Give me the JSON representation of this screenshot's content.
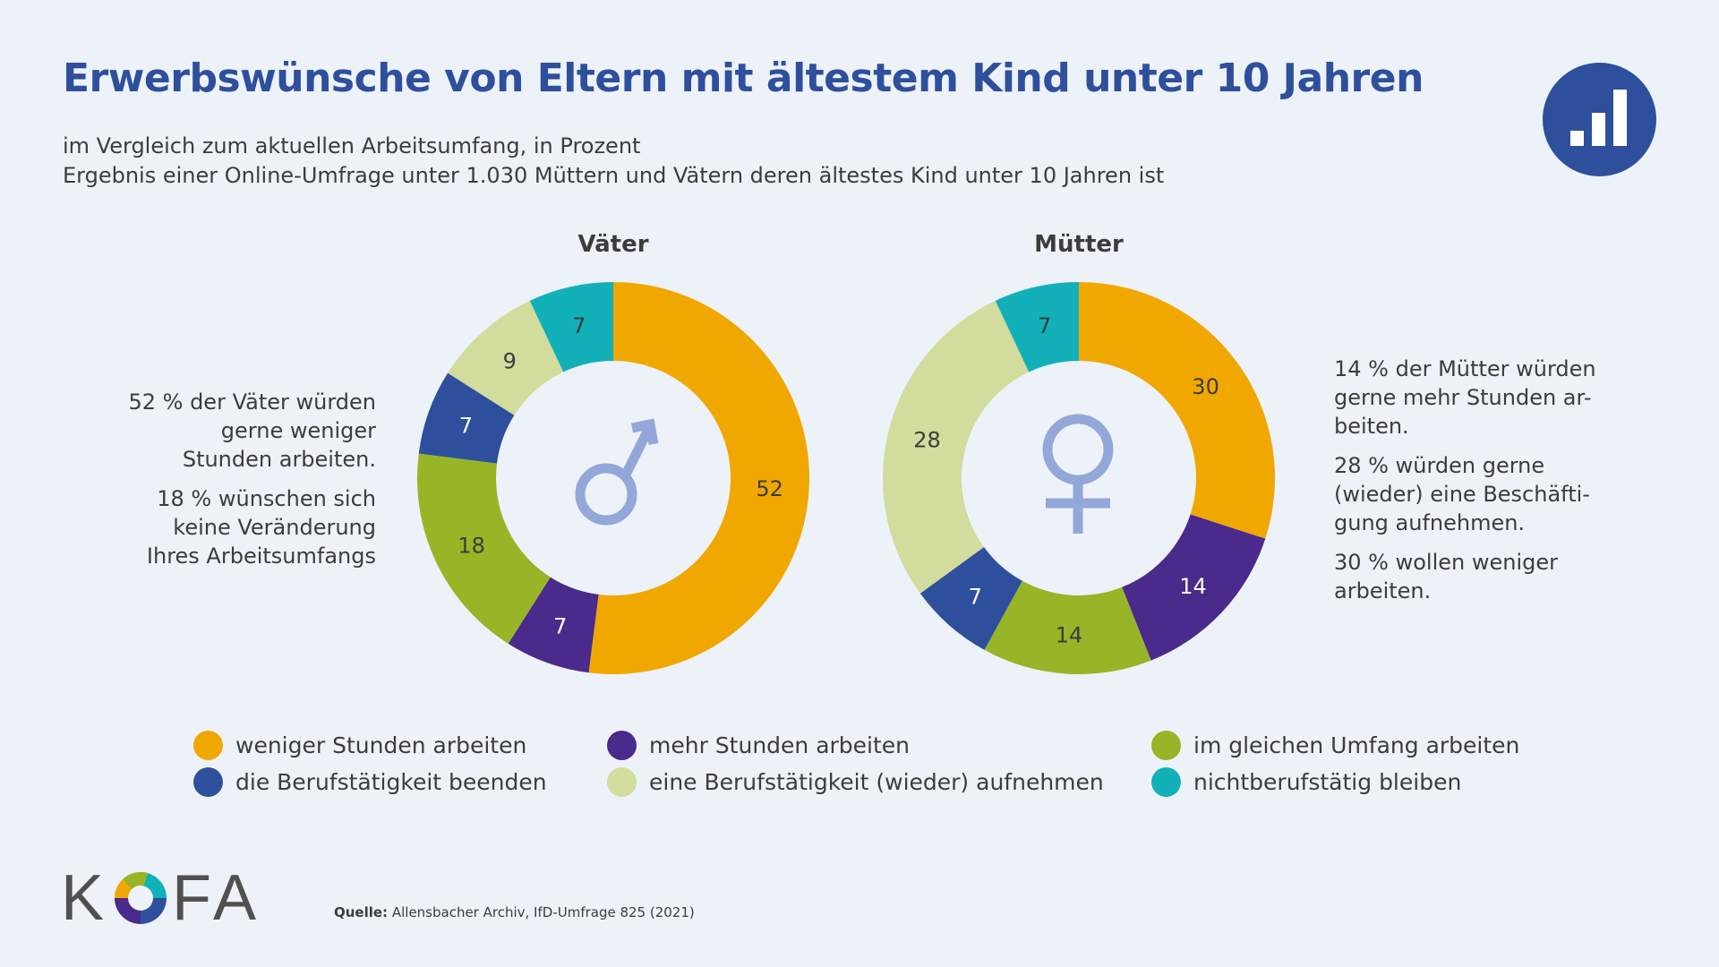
{
  "title": "Erwerbswünsche von Eltern mit ältestem Kind unter 10 Jahren",
  "subtitle": {
    "line1": "im Vergleich zum aktuellen Arbeitsumfang, in Prozent",
    "line2": "Ergebnis einer Online-Umfrage unter 1.030 Müttern und Vätern deren ältestes Kind unter 10 Jahren ist"
  },
  "icons": {
    "corner": "bar-chart-icon",
    "fathers_center": "male-symbol-icon",
    "mothers_center": "female-symbol-icon",
    "logo_mark": "kofa-swirl-icon"
  },
  "colors": {
    "title": "#2e4f9c",
    "orange": "#f0a800",
    "purple": "#4a2a8a",
    "green": "#97b527",
    "blue": "#2e4f9c",
    "lightgreen": "#d2dc9c",
    "teal": "#12b0b8",
    "symbol": "#93a7d8"
  },
  "chart_data": [
    {
      "type": "pie",
      "title": "Väter",
      "categories": [
        "weniger Stunden arbeiten",
        "mehr Stunden arbeiten",
        "im gleichen Umfang arbeiten",
        "die Berufstätigkeit beenden",
        "eine Berufstätigkeit (wieder) aufnehmen",
        "nichtberufstätig bleiben"
      ],
      "values": [
        52,
        7,
        18,
        7,
        9,
        7
      ],
      "colors": [
        "#f0a800",
        "#4a2a8a",
        "#97b527",
        "#2e4f9c",
        "#d2dc9c",
        "#12b0b8"
      ]
    },
    {
      "type": "pie",
      "title": "Mütter",
      "categories": [
        "weniger Stunden arbeiten",
        "mehr Stunden arbeiten",
        "im gleichen Umfang arbeiten",
        "die Berufstätigkeit beenden",
        "eine Berufstätigkeit (wieder) aufnehmen",
        "nichtberufstätig bleiben"
      ],
      "values": [
        30,
        14,
        14,
        7,
        28,
        7
      ],
      "colors": [
        "#f0a800",
        "#4a2a8a",
        "#97b527",
        "#2e4f9c",
        "#d2dc9c",
        "#12b0b8"
      ]
    }
  ],
  "notes": {
    "fathers": [
      "52 % der Väter würden gerne weniger Stunden arbeiten.",
      "18 % wünschen sich keine Veränderung Ihres Arbeitsumfangs"
    ],
    "mothers": [
      "14 % der Mütter würden gerne mehr Stunden ar-beiten.",
      "28 % würden gerne (wieder) eine Beschäfti-gung aufnehmen.",
      "30 % wollen weniger arbeiten."
    ]
  },
  "legend": [
    {
      "label": "weniger Stunden arbeiten",
      "color": "#f0a800"
    },
    {
      "label": "mehr Stunden arbeiten",
      "color": "#4a2a8a"
    },
    {
      "label": "im gleichen Umfang arbeiten",
      "color": "#97b527"
    },
    {
      "label": "die Berufstätigkeit beenden",
      "color": "#2e4f9c"
    },
    {
      "label": "eine Berufstätigkeit (wieder) aufnehmen",
      "color": "#d2dc9c"
    },
    {
      "label": "nichtberufstätig bleiben",
      "color": "#12b0b8"
    }
  ],
  "logo": {
    "left_letter": "K",
    "right_letters": "FA"
  },
  "source": {
    "label": "Quelle:",
    "text": "Allensbacher Archiv, IfD-Umfrage 825 (2021)"
  }
}
